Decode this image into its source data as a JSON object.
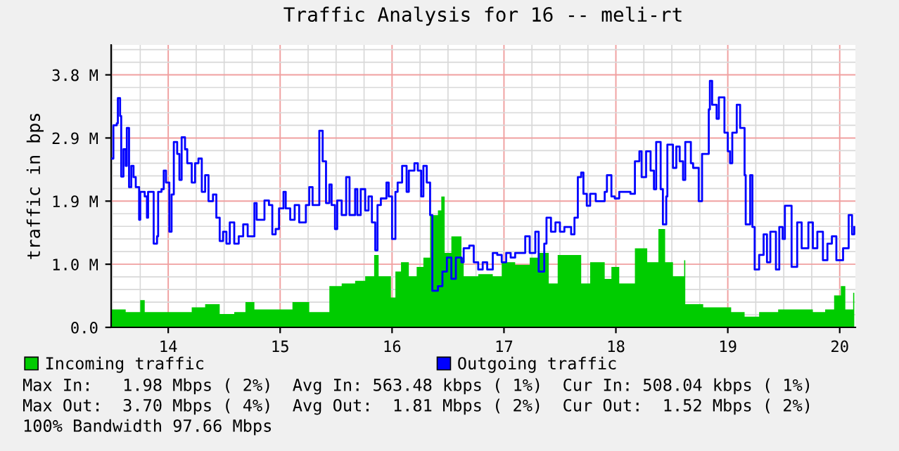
{
  "chart_data": {
    "type": "area",
    "title": "Traffic Analysis for 16 -- meli-rt",
    "ylabel": "traffic in bps",
    "xlim": [
      13.49,
      20.14
    ],
    "xticks": [
      14,
      15,
      16,
      17,
      18,
      19,
      20
    ],
    "ylim": [
      0,
      4.25
    ],
    "yticks": [
      {
        "value": 0,
        "label": "0.0"
      },
      {
        "value": 0.95,
        "label": "1.0 M"
      },
      {
        "value": 1.9,
        "label": "1.9 M"
      },
      {
        "value": 2.85,
        "label": "2.9 M"
      },
      {
        "value": 3.8,
        "label": "3.8 M"
      }
    ],
    "grid": true,
    "legend": "bottom",
    "series": [
      {
        "name": "Incoming traffic",
        "color": "#00cc00",
        "x": [
          13.49,
          13.62,
          13.75,
          13.79,
          13.96,
          14.08,
          14.21,
          14.33,
          14.46,
          14.59,
          14.69,
          14.77,
          14.92,
          15.11,
          15.26,
          15.38,
          15.44,
          15.55,
          15.67,
          15.76,
          15.84,
          15.88,
          15.99,
          16.03,
          16.08,
          16.15,
          16.22,
          16.28,
          16.34,
          16.41,
          16.44,
          16.47,
          16.53,
          16.62,
          16.64,
          16.77,
          16.9,
          16.98,
          17.1,
          17.23,
          17.31,
          17.4,
          17.48,
          17.62,
          17.69,
          17.77,
          17.9,
          17.96,
          18.03,
          18.17,
          18.28,
          18.38,
          18.44,
          18.51,
          18.61,
          18.62,
          18.78,
          19.03,
          19.15,
          19.28,
          19.45,
          19.62,
          19.76,
          19.87,
          19.95,
          20.01,
          20.05,
          20.12,
          20.13
        ],
        "values": [
          0.27,
          0.23,
          0.41,
          0.23,
          0.23,
          0.23,
          0.3,
          0.35,
          0.2,
          0.23,
          0.38,
          0.27,
          0.27,
          0.38,
          0.23,
          0.23,
          0.62,
          0.66,
          0.7,
          0.77,
          1.09,
          0.77,
          0.45,
          0.84,
          0.98,
          0.77,
          0.91,
          1.05,
          1.69,
          1.76,
          1.97,
          1.12,
          1.37,
          1.05,
          0.77,
          0.8,
          0.77,
          0.98,
          0.94,
          1.05,
          1.12,
          0.66,
          1.09,
          1.09,
          0.66,
          0.98,
          0.73,
          0.91,
          0.66,
          1.19,
          0.98,
          1.48,
          0.98,
          0.77,
          1.01,
          0.35,
          0.3,
          0.23,
          0.16,
          0.23,
          0.27,
          0.27,
          0.23,
          0.27,
          0.48,
          0.62,
          0.27,
          0.52,
          0.23
        ]
      },
      {
        "name": "Outgoing traffic",
        "type": "step",
        "color": "#0000ff",
        "x": [
          13.49,
          13.51,
          13.54,
          13.55,
          13.57,
          13.58,
          13.6,
          13.62,
          13.63,
          13.65,
          13.67,
          13.69,
          13.71,
          13.74,
          13.75,
          13.79,
          13.81,
          13.82,
          13.85,
          13.87,
          13.9,
          13.91,
          13.94,
          13.96,
          13.98,
          14.01,
          14.03,
          14.05,
          14.08,
          14.1,
          14.12,
          14.15,
          14.17,
          14.21,
          14.24,
          14.27,
          14.3,
          14.33,
          14.36,
          14.4,
          14.43,
          14.46,
          14.49,
          14.52,
          14.55,
          14.59,
          14.63,
          14.67,
          14.71,
          14.77,
          14.79,
          14.86,
          14.9,
          14.93,
          14.96,
          14.99,
          15.03,
          15.05,
          15.09,
          15.13,
          15.17,
          15.23,
          15.26,
          15.29,
          15.32,
          15.35,
          15.38,
          15.41,
          15.44,
          15.46,
          15.49,
          15.51,
          15.55,
          15.59,
          15.62,
          15.67,
          15.69,
          15.72,
          15.76,
          15.79,
          15.82,
          15.85,
          15.87,
          15.9,
          15.95,
          15.97,
          16.0,
          16.03,
          16.05,
          16.09,
          16.13,
          16.15,
          16.2,
          16.23,
          16.26,
          16.28,
          16.31,
          16.34,
          16.36,
          16.41,
          16.45,
          16.49,
          16.53,
          16.57,
          16.62,
          16.64,
          16.69,
          16.73,
          16.77,
          16.81,
          16.85,
          16.9,
          16.94,
          16.98,
          17.02,
          17.06,
          17.1,
          17.15,
          17.19,
          17.23,
          17.28,
          17.31,
          17.36,
          17.38,
          17.42,
          17.46,
          17.5,
          17.54,
          17.6,
          17.63,
          17.66,
          17.69,
          17.71,
          17.74,
          17.77,
          17.82,
          17.86,
          17.9,
          17.92,
          17.96,
          17.99,
          18.03,
          18.09,
          18.13,
          18.17,
          18.21,
          18.23,
          18.27,
          18.31,
          18.34,
          18.36,
          18.4,
          18.42,
          18.45,
          18.46,
          18.51,
          18.54,
          18.57,
          18.6,
          18.62,
          18.67,
          18.69,
          18.74,
          18.77,
          18.81,
          18.83,
          18.84,
          18.86,
          18.9,
          18.92,
          18.95,
          18.97,
          19.0,
          19.02,
          19.04,
          19.08,
          19.11,
          19.15,
          19.16,
          19.2,
          19.22,
          19.24,
          19.28,
          19.32,
          19.35,
          19.38,
          19.43,
          19.46,
          19.49,
          19.51,
          19.54,
          19.57,
          19.62,
          19.66,
          19.72,
          19.76,
          19.8,
          19.85,
          19.89,
          19.93,
          19.97,
          20.03,
          20.08,
          20.11,
          20.13
        ],
        "values": [
          2.54,
          3.04,
          3.07,
          3.45,
          3.18,
          2.27,
          2.68,
          2.43,
          3.0,
          2.11,
          2.43,
          2.26,
          2.11,
          1.62,
          2.04,
          1.97,
          1.65,
          2.04,
          2.04,
          1.26,
          1.37,
          2.04,
          2.08,
          2.36,
          2.18,
          1.44,
          2.0,
          2.79,
          2.61,
          2.22,
          2.86,
          2.68,
          2.47,
          2.18,
          2.47,
          2.54,
          2.04,
          2.29,
          1.9,
          2.0,
          1.65,
          1.3,
          1.44,
          1.26,
          1.58,
          1.26,
          1.37,
          1.55,
          1.37,
          1.87,
          1.62,
          1.91,
          1.84,
          1.4,
          1.48,
          1.79,
          2.04,
          1.79,
          1.62,
          1.84,
          1.58,
          1.84,
          2.11,
          1.84,
          1.84,
          2.96,
          2.5,
          1.87,
          2.15,
          1.84,
          1.48,
          1.91,
          1.69,
          2.26,
          1.69,
          2.08,
          1.69,
          2.08,
          1.76,
          1.97,
          1.58,
          1.16,
          1.84,
          1.94,
          2.18,
          1.97,
          1.33,
          2.04,
          2.18,
          2.43,
          2.04,
          2.36,
          2.47,
          2.36,
          1.97,
          2.43,
          2.18,
          1.69,
          0.55,
          0.62,
          0.84,
          1.05,
          0.73,
          1.05,
          0.98,
          1.19,
          1.23,
          0.98,
          0.87,
          0.98,
          0.87,
          1.12,
          1.09,
          0.98,
          1.12,
          1.05,
          1.12,
          1.12,
          1.37,
          1.12,
          1.44,
          0.84,
          1.26,
          1.65,
          1.44,
          1.58,
          1.44,
          1.51,
          1.4,
          1.65,
          2.26,
          2.33,
          2.01,
          1.83,
          2.01,
          1.9,
          1.9,
          2.04,
          2.29,
          1.97,
          1.94,
          2.04,
          2.04,
          2.01,
          2.5,
          2.65,
          2.26,
          2.65,
          2.36,
          2.08,
          2.79,
          2.08,
          1.55,
          1.97,
          2.75,
          2.4,
          2.72,
          2.5,
          2.22,
          2.79,
          2.47,
          2.4,
          1.9,
          2.61,
          2.61,
          3.28,
          3.71,
          3.35,
          3.14,
          3.46,
          3.46,
          2.93,
          2.65,
          2.47,
          2.93,
          3.35,
          3.0,
          2.29,
          1.55,
          2.29,
          1.51,
          0.87,
          1.09,
          1.4,
          0.98,
          1.44,
          0.87,
          1.51,
          1.33,
          1.83,
          1.83,
          0.91,
          1.58,
          1.19,
          1.58,
          1.19,
          1.44,
          1.01,
          1.26,
          1.37,
          1.01,
          1.19,
          1.69,
          1.4,
          1.51
        ]
      }
    ],
    "annotations": [
      "Max In:   1.98 Mbps ( 2%)  Avg In: 563.48 kbps ( 1%)  Cur In: 508.04 kbps ( 1%)",
      "Max Out:  3.70 Mbps ( 4%)  Avg Out:  1.81 Mbps ( 2%)  Cur Out:  1.52 Mbps ( 2%)",
      "100% Bandwidth 97.66 Mbps"
    ]
  }
}
